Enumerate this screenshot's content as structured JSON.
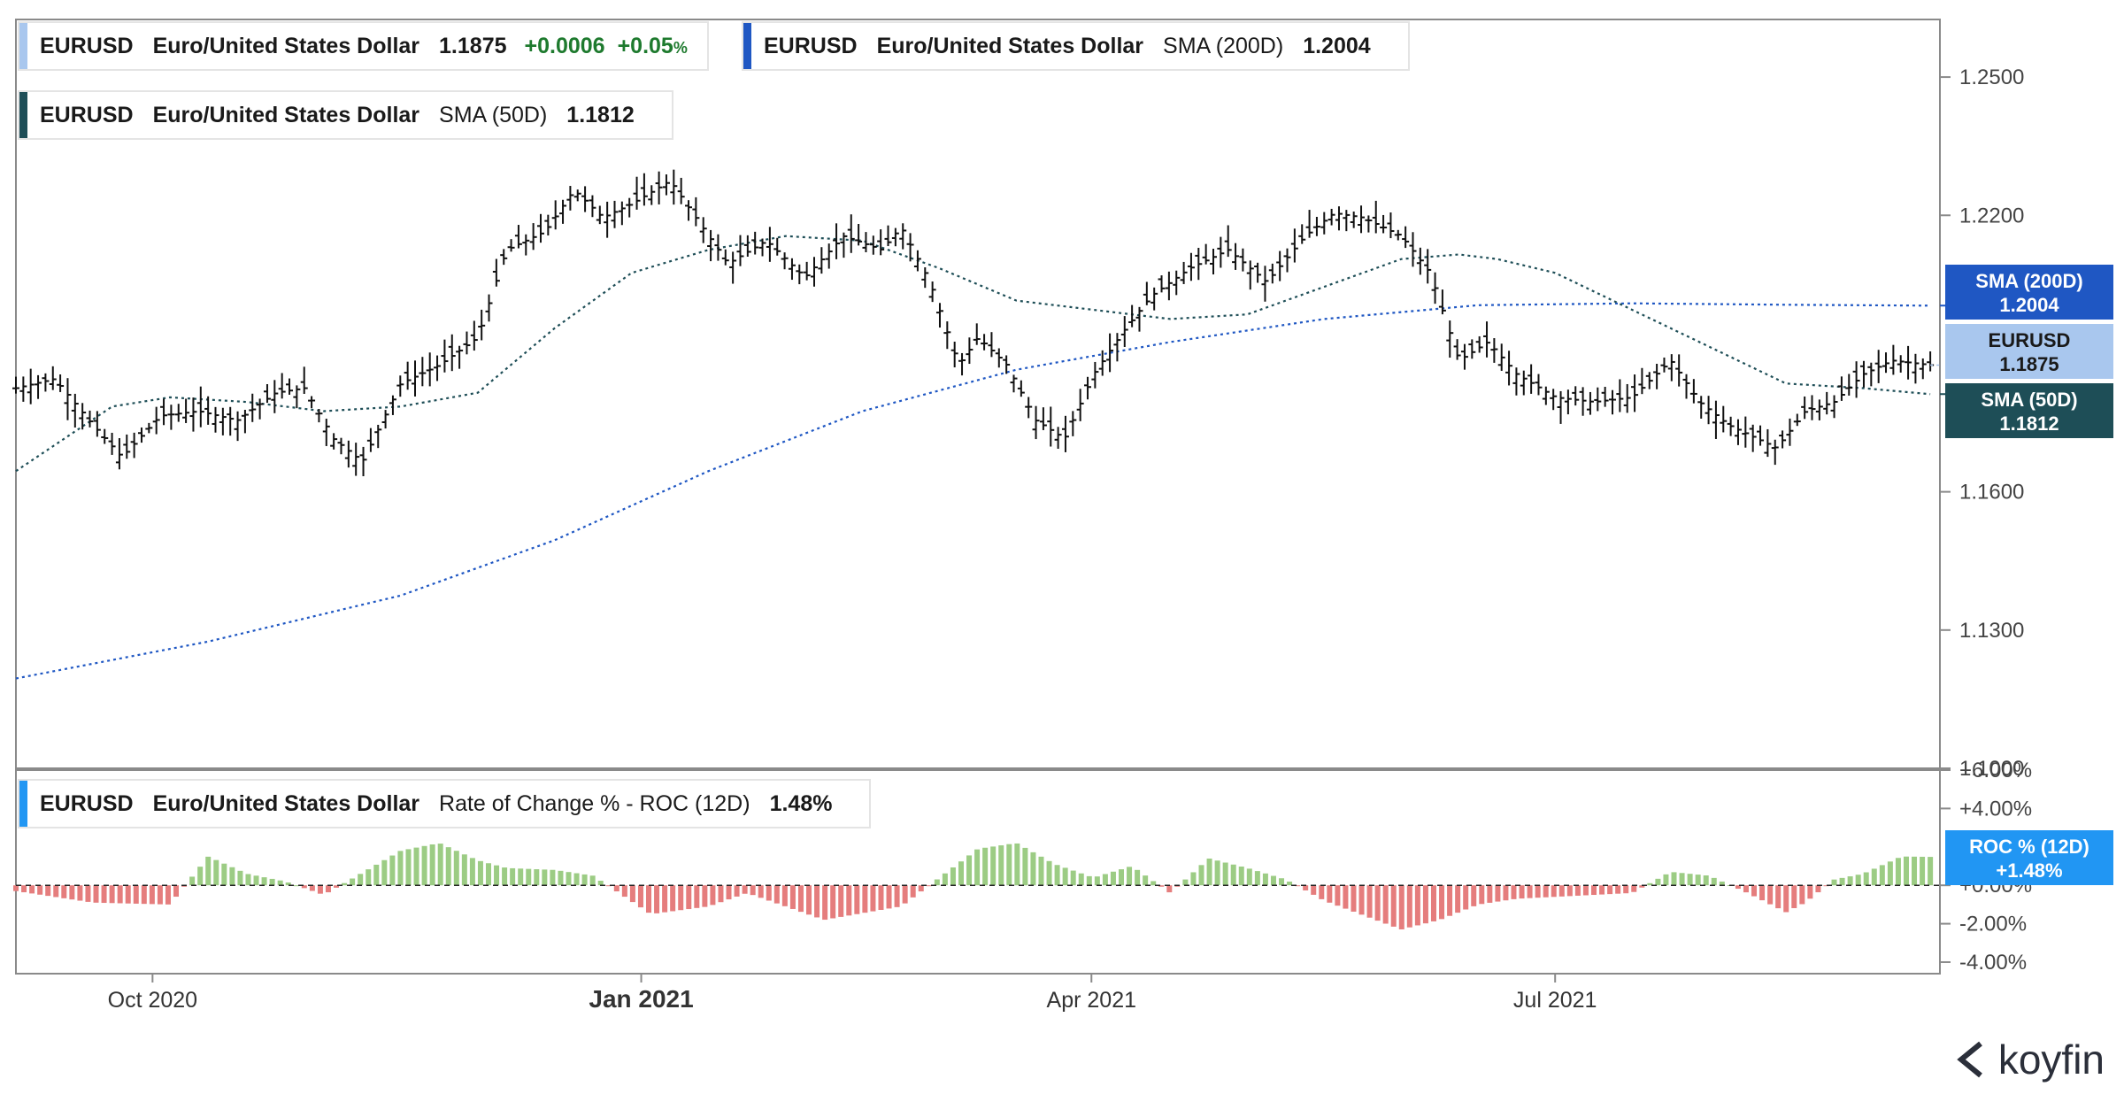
{
  "legends": {
    "price": {
      "symbol": "EURUSD",
      "name": "Euro/United States Dollar",
      "value": "1.1875",
      "change": "+0.0006",
      "change_pct": "+0.05",
      "pct_sign": "%",
      "color": "#a9c7ee"
    },
    "sma200": {
      "symbol": "EURUSD",
      "name": "Euro/United States Dollar",
      "indicator": "SMA (200D)",
      "value": "1.2004",
      "color": "#1f57c3"
    },
    "sma50": {
      "symbol": "EURUSD",
      "name": "Euro/United States Dollar",
      "indicator": "SMA (50D)",
      "value": "1.1812",
      "color": "#1e4e57"
    },
    "roc": {
      "symbol": "EURUSD",
      "name": "Euro/United States Dollar",
      "indicator": "Rate of Change % - ROC (12D)",
      "value": "1.48%",
      "color": "#2196f3"
    }
  },
  "tags": {
    "sma200": {
      "label": "SMA (200D)",
      "value": "1.2004",
      "color": "#1f57c3"
    },
    "price": {
      "label": "EURUSD",
      "value": "1.1875",
      "color": "#a9c7ee"
    },
    "sma50": {
      "label": "SMA (50D)",
      "value": "1.1812",
      "color": "#1e4e57"
    },
    "roc": {
      "label": "ROC % (12D)",
      "value": "+1.48%",
      "color": "#2196f3"
    }
  },
  "brand": "koyfin",
  "chart_data": [
    {
      "type": "line",
      "title": "EURUSD Euro/United States Dollar",
      "y_ticks": [
        "1.2500",
        "1.2200",
        "1.1600",
        "1.1300",
        "1.1000"
      ],
      "ylim": [
        1.1,
        1.2625
      ],
      "x_ticks": [
        {
          "label": "Oct 2020",
          "t": 0.071
        },
        {
          "label": "Jan 2021",
          "t": 0.325
        },
        {
          "label": "Apr 2021",
          "t": 0.559
        },
        {
          "label": "Jul 2021",
          "t": 0.8
        }
      ],
      "series": [
        {
          "name": "EURUSD",
          "style": "ohlc-bars",
          "color": "#000000",
          "t": [
            0.0,
            0.02,
            0.04,
            0.055,
            0.075,
            0.095,
            0.115,
            0.135,
            0.15,
            0.165,
            0.18,
            0.2,
            0.22,
            0.24,
            0.255,
            0.275,
            0.29,
            0.305,
            0.32,
            0.34,
            0.355,
            0.37,
            0.39,
            0.41,
            0.43,
            0.45,
            0.46,
            0.475,
            0.49,
            0.5,
            0.515,
            0.53,
            0.545,
            0.56,
            0.575,
            0.59,
            0.61,
            0.63,
            0.65,
            0.67,
            0.685,
            0.7,
            0.72,
            0.735,
            0.75,
            0.765,
            0.78,
            0.8,
            0.82,
            0.84,
            0.86,
            0.875,
            0.89,
            0.905,
            0.915,
            0.93,
            0.945,
            0.96,
            0.975,
            0.995
          ],
          "values": [
            1.1825,
            1.1845,
            1.1745,
            1.1675,
            1.1765,
            1.1775,
            1.1755,
            1.1815,
            1.1825,
            1.1715,
            1.1665,
            1.1835,
            1.1875,
            1.1935,
            1.2125,
            1.2165,
            1.2255,
            1.2195,
            1.2225,
            1.2275,
            1.2185,
            1.2095,
            1.2145,
            1.2065,
            1.2155,
            1.2125,
            1.2175,
            1.2055,
            1.1875,
            1.1935,
            1.1875,
            1.1755,
            1.1715,
            1.1855,
            1.1945,
            1.2025,
            1.2085,
            1.2125,
            1.2055,
            1.2155,
            1.2205,
            1.2195,
            1.2155,
            1.2075,
            1.1885,
            1.1925,
            1.1855,
            1.1805,
            1.1795,
            1.1805,
            1.1885,
            1.1795,
            1.1745,
            1.1715,
            1.1695,
            1.1775,
            1.1795,
            1.1855,
            1.1885,
            1.1875
          ]
        },
        {
          "name": "SMA (50D)",
          "style": "dotted",
          "color": "#1e4e57",
          "t": [
            0.0,
            0.05,
            0.08,
            0.12,
            0.16,
            0.2,
            0.24,
            0.28,
            0.32,
            0.36,
            0.4,
            0.44,
            0.48,
            0.52,
            0.56,
            0.6,
            0.64,
            0.68,
            0.72,
            0.75,
            0.77,
            0.8,
            0.84,
            0.88,
            0.92,
            0.96,
            0.995
          ],
          "values": [
            1.1645,
            1.1785,
            1.1805,
            1.1795,
            1.1775,
            1.1785,
            1.1815,
            1.1955,
            1.2075,
            1.2125,
            1.2155,
            1.2145,
            1.2085,
            1.2015,
            1.1995,
            1.1975,
            1.1985,
            1.2045,
            1.2105,
            1.2115,
            1.2105,
            1.2075,
            1.1995,
            1.1915,
            1.1835,
            1.1825,
            1.1812
          ]
        },
        {
          "name": "SMA (200D)",
          "style": "dotted",
          "color": "#1f57c3",
          "t": [
            0.0,
            0.1,
            0.2,
            0.28,
            0.36,
            0.44,
            0.52,
            0.6,
            0.68,
            0.76,
            0.84,
            0.92,
            0.995
          ],
          "values": [
            1.1195,
            1.1275,
            1.1375,
            1.1495,
            1.1645,
            1.1775,
            1.1865,
            1.1925,
            1.1975,
            1.2005,
            1.2009,
            1.2006,
            1.2004
          ]
        }
      ]
    },
    {
      "type": "bar",
      "title": "Rate of Change % - ROC (12D)",
      "y_ticks": [
        "+6.00%",
        "+4.00%",
        "+0.00%",
        "-2.00%",
        "-4.00%"
      ],
      "ylim": [
        -4.6,
        6.0
      ],
      "series": [
        {
          "name": "ROC (12D)",
          "positive_color": "#9ccc84",
          "negative_color": "#e57d7d",
          "t": [
            0.0,
            0.04,
            0.08,
            0.1,
            0.12,
            0.14,
            0.16,
            0.2,
            0.22,
            0.24,
            0.255,
            0.28,
            0.3,
            0.33,
            0.36,
            0.38,
            0.42,
            0.46,
            0.5,
            0.52,
            0.54,
            0.56,
            0.58,
            0.6,
            0.62,
            0.64,
            0.66,
            0.68,
            0.72,
            0.74,
            0.76,
            0.78,
            0.8,
            0.82,
            0.84,
            0.86,
            0.88,
            0.9,
            0.92,
            0.93,
            0.945,
            0.96,
            0.98,
            0.995
          ],
          "values": [
            -0.3,
            -0.9,
            -1.0,
            1.5,
            0.6,
            0.2,
            -0.5,
            1.8,
            2.2,
            1.3,
            0.9,
            0.8,
            0.5,
            -1.5,
            -1.1,
            -0.4,
            -1.8,
            -1.1,
            1.9,
            2.2,
            1.1,
            0.4,
            1.0,
            -0.4,
            1.4,
            0.9,
            0.3,
            -0.8,
            -2.3,
            -1.8,
            -1.0,
            -0.7,
            -0.6,
            -0.5,
            -0.4,
            0.7,
            0.5,
            -0.4,
            -1.4,
            -0.9,
            0.3,
            0.6,
            1.5,
            1.48
          ]
        }
      ]
    }
  ]
}
